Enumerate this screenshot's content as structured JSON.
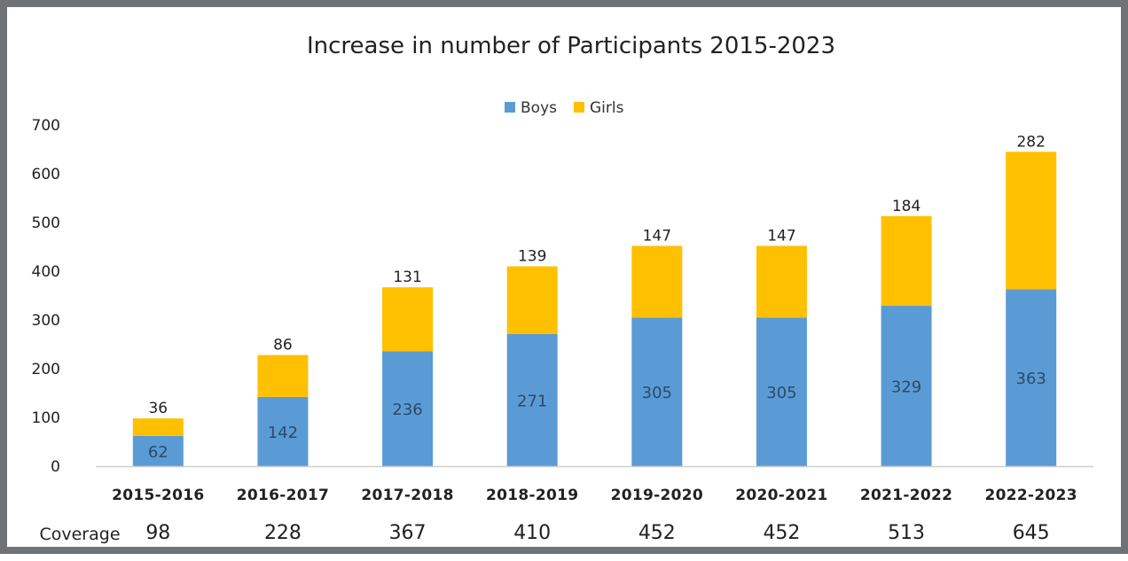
{
  "chart_data": {
    "type": "bar",
    "stacked": true,
    "title": "Increase in number of Participants 2015-2023",
    "categories": [
      "2015-2016",
      "2016-2017",
      "2017-2018",
      "2018-2019",
      "2019-2020",
      "2020-2021",
      "2021-2022",
      "2022-2023"
    ],
    "series": [
      {
        "name": "Boys",
        "color": "#5b9bd5",
        "values": [
          62,
          142,
          236,
          271,
          305,
          305,
          329,
          363
        ]
      },
      {
        "name": "Girls",
        "color": "#ffc000",
        "values": [
          36,
          86,
          131,
          139,
          147,
          147,
          184,
          282
        ]
      }
    ],
    "ylim": [
      0,
      700
    ],
    "yticks": [
      0,
      100,
      200,
      300,
      400,
      500,
      600,
      700
    ],
    "grid": false,
    "legend_position": "top-center",
    "coverage_label": "Coverage",
    "coverage": [
      98,
      228,
      367,
      410,
      452,
      452,
      513,
      645
    ]
  }
}
